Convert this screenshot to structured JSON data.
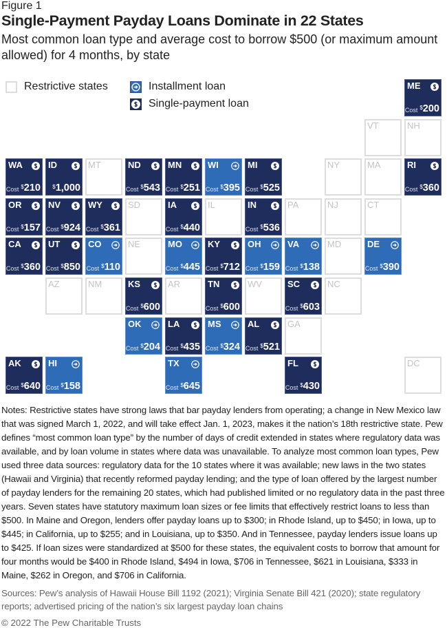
{
  "figure_label": "Figure 1",
  "title": "Single-Payment Payday Loans Dominate in 22 States",
  "subtitle": "Most common loan type and average cost to borrow $500 (or maximum amount allowed) for 4 months, by state",
  "legend": {
    "restrictive": "Restrictive states",
    "installment": "Installment loan",
    "single": "Single-payment loan"
  },
  "colors": {
    "single": "#1f2d5c",
    "installment": "#2f6cb7",
    "restrictive_border": "#dddddd",
    "restrictive_text": "#c4c4c4"
  },
  "icons": {
    "single": "dollar-circle-icon",
    "installment": "arrow-circle-icon"
  },
  "cost_label": "Cost",
  "currency": "$",
  "states": [
    {
      "code": "ME",
      "type": "single",
      "cost": "200"
    },
    {
      "code": "VT",
      "type": "restrictive"
    },
    {
      "code": "NH",
      "type": "restrictive"
    },
    {
      "code": "WA",
      "type": "single",
      "cost": "210"
    },
    {
      "code": "ID",
      "type": "single",
      "cost": "1,000",
      "hide_cost_label": true
    },
    {
      "code": "MT",
      "type": "restrictive"
    },
    {
      "code": "ND",
      "type": "single",
      "cost": "543"
    },
    {
      "code": "MN",
      "type": "single",
      "cost": "251"
    },
    {
      "code": "WI",
      "type": "installment",
      "cost": "395"
    },
    {
      "code": "MI",
      "type": "single",
      "cost": "525"
    },
    {
      "code": "NY",
      "type": "restrictive"
    },
    {
      "code": "MA",
      "type": "restrictive"
    },
    {
      "code": "RI",
      "type": "single",
      "cost": "360"
    },
    {
      "code": "OR",
      "type": "single",
      "cost": "157"
    },
    {
      "code": "NV",
      "type": "single",
      "cost": "924"
    },
    {
      "code": "WY",
      "type": "single",
      "cost": "361"
    },
    {
      "code": "SD",
      "type": "restrictive"
    },
    {
      "code": "IA",
      "type": "single",
      "cost": "440"
    },
    {
      "code": "IL",
      "type": "restrictive"
    },
    {
      "code": "IN",
      "type": "single",
      "cost": "536"
    },
    {
      "code": "PA",
      "type": "restrictive"
    },
    {
      "code": "NJ",
      "type": "restrictive"
    },
    {
      "code": "CT",
      "type": "restrictive"
    },
    {
      "code": "CA",
      "type": "single",
      "cost": "360"
    },
    {
      "code": "UT",
      "type": "single",
      "cost": "850"
    },
    {
      "code": "CO",
      "type": "installment",
      "cost": "110"
    },
    {
      "code": "NE",
      "type": "restrictive"
    },
    {
      "code": "MO",
      "type": "installment",
      "cost": "445"
    },
    {
      "code": "KY",
      "type": "single",
      "cost": "712"
    },
    {
      "code": "OH",
      "type": "installment",
      "cost": "159"
    },
    {
      "code": "VA",
      "type": "installment",
      "cost": "138"
    },
    {
      "code": "MD",
      "type": "restrictive"
    },
    {
      "code": "DE",
      "type": "installment",
      "cost": "390"
    },
    {
      "code": "AZ",
      "type": "restrictive"
    },
    {
      "code": "NM",
      "type": "restrictive"
    },
    {
      "code": "KS",
      "type": "single",
      "cost": "600"
    },
    {
      "code": "AR",
      "type": "restrictive"
    },
    {
      "code": "TN",
      "type": "single",
      "cost": "600"
    },
    {
      "code": "WV",
      "type": "restrictive"
    },
    {
      "code": "SC",
      "type": "single",
      "cost": "603"
    },
    {
      "code": "NC",
      "type": "restrictive"
    },
    {
      "code": "OK",
      "type": "installment",
      "cost": "204"
    },
    {
      "code": "LA",
      "type": "single",
      "cost": "435"
    },
    {
      "code": "MS",
      "type": "installment",
      "cost": "324"
    },
    {
      "code": "AL",
      "type": "single",
      "cost": "521"
    },
    {
      "code": "GA",
      "type": "restrictive"
    },
    {
      "code": "AK",
      "type": "single",
      "cost": "640"
    },
    {
      "code": "HI",
      "type": "installment",
      "cost": "158"
    },
    {
      "code": "TX",
      "type": "installment",
      "cost": "645"
    },
    {
      "code": "FL",
      "type": "single",
      "cost": "430"
    },
    {
      "code": "DC",
      "type": "restrictive"
    }
  ],
  "notes": "Notes: Restrictive states have strong laws that bar payday lenders from operating; a change in New Mexico law that was signed March 1, 2022, and will take effect Jan. 1, 2023, makes it the nation’s 18th restrictive state. Pew defines “most common loan type” by the number of days of credit extended in states where regulatory data was available, and by loan volume in states where data was unavailable. To analyze most common loan types, Pew used three data sources: regulatory data for the 10 states where it was available; new laws in the two states (Hawaii and Virginia) that recently reformed payday lending; and the type of loan offered by the largest number of payday lenders for the remaining 20 states, which had published limited or no regulatory data in the past three years. Seven states have statutory maximum loan sizes or fee limits that effectively restrict loans to less than $500. In Maine and Oregon, lenders offer payday loans up to $300; in Rhode Island, up to $450; in Iowa, up to $445; in California, up to $255; and in Louisiana, up to $350. And in Tennessee, payday lenders issue loans up to $425. If loan sizes were standardized at $500 for these states, the equivalent costs to borrow that amount for four months would be $400 in Rhode Island, $494 in Iowa, $706 in Tennessee, $621 in Louisiana, $333 in Maine, $262 in Oregon, and $706 in California.",
  "sources": "Sources: Pew’s analysis of Hawaii House Bill 1192 (2021); Virginia Senate Bill 421 (2020); state regulatory reports; advertised pricing of the nation’s six largest payday loan chains",
  "copyright": "© 2022 The Pew Charitable Trusts"
}
